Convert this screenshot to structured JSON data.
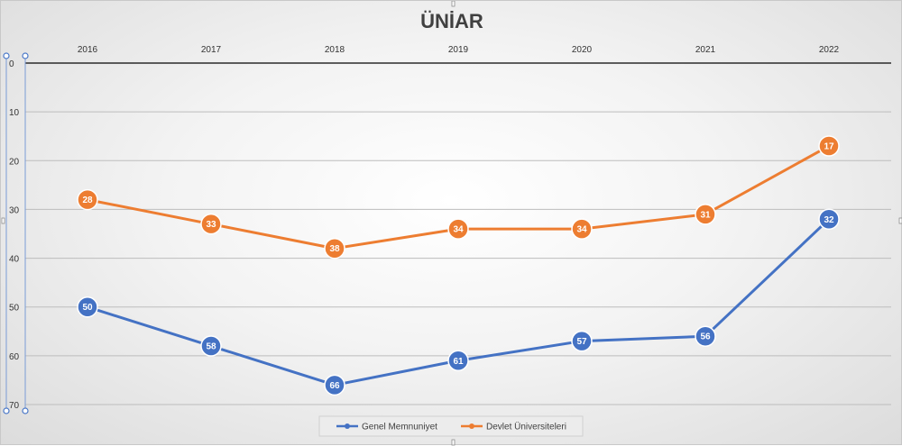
{
  "chart_data": {
    "type": "line",
    "title": "ÜNİAR",
    "xlabel": "",
    "ylabel": "",
    "categories": [
      "2016",
      "2017",
      "2018",
      "2019",
      "2020",
      "2021",
      "2022"
    ],
    "yticks": [
      "0",
      "10",
      "20",
      "30",
      "40",
      "50",
      "60",
      "70"
    ],
    "ylim": [
      0,
      70
    ],
    "y_inverted": true,
    "grid": true,
    "legend_position": "bottom",
    "series": [
      {
        "name": "Genel Memnuniyet",
        "color": "#4472C4",
        "values": [
          50,
          58,
          66,
          61,
          57,
          56,
          32
        ]
      },
      {
        "name": "Devlet Üniversiteleri",
        "color": "#ED7D31",
        "values": [
          28,
          33,
          38,
          34,
          34,
          31,
          17
        ]
      }
    ]
  }
}
